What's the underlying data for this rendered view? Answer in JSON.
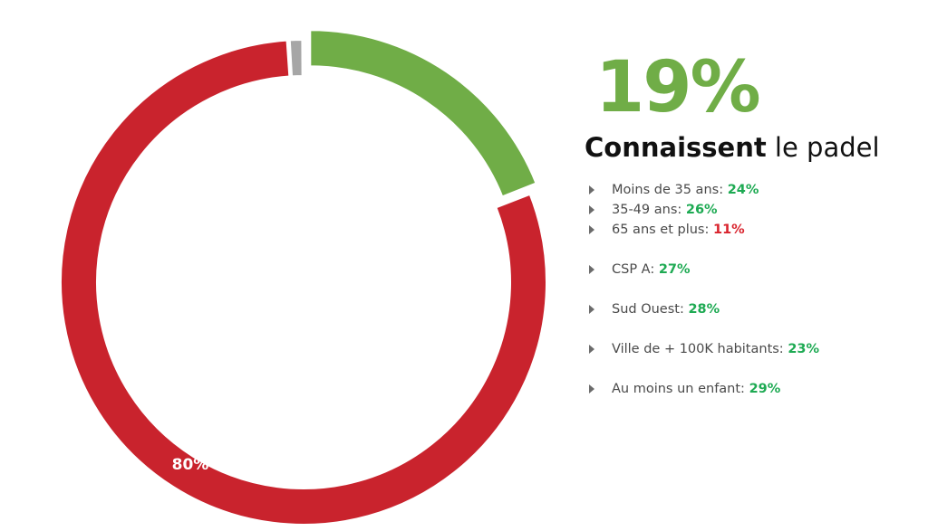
{
  "chart_data": {
    "type": "pie",
    "donut": true,
    "slices": [
      {
        "value": 19,
        "color": "#70ad47"
      },
      {
        "value": 80,
        "color": "#c9232d",
        "label": "80%"
      },
      {
        "value": 1,
        "color": "#a6a6a6"
      }
    ]
  },
  "headline": {
    "value": "19%",
    "value_color": "#70ad47",
    "strong": "Connaissent",
    "rest": " le padel"
  },
  "stats": [
    {
      "label": "Moins de 35 ans: ",
      "value": "24%",
      "color": "#1eaa53"
    },
    {
      "label": "35-49 ans: ",
      "value": "26%",
      "color": "#1eaa53"
    },
    {
      "label": "65 ans et plus: ",
      "value": "11%",
      "color": "#d9232d"
    },
    {
      "label": "CSP A: ",
      "value": "27%",
      "color": "#1eaa53"
    },
    {
      "label": "Sud Ouest: ",
      "value": "28%",
      "color": "#1eaa53"
    },
    {
      "label": "Ville de + 100K habitants: ",
      "value": "23%",
      "color": "#1eaa53"
    },
    {
      "label": "Au moins un enfant: ",
      "value": "29%",
      "color": "#1eaa53"
    }
  ]
}
